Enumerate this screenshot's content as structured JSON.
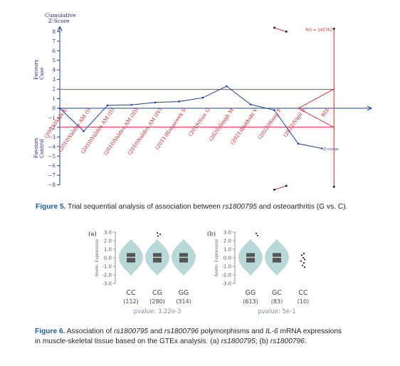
{
  "tsa": {
    "y_axis_label": [
      "Cumulative",
      "Z-Score"
    ],
    "favours_case": [
      "Favours",
      "Case"
    ],
    "favours_control": [
      "Favours",
      "Control"
    ],
    "ris_label": "RIS = 145762",
    "ris_axis_label": "RIS",
    "legend_zcurve": "Z-curve",
    "colors": {
      "zcurve": "#1f3f9c",
      "boundary": "#c8202a",
      "axis": "#1f3f9c",
      "text": "#1f1f7a"
    }
  },
  "chart_data": [
    {
      "type": "line",
      "title": "",
      "xlabel": "",
      "ylabel": "Cumulative Z-Score",
      "ylim": [
        -8,
        8
      ],
      "y_ticks": [
        8,
        7,
        6,
        5,
        4,
        3,
        2,
        1,
        0,
        -1,
        -2,
        -3,
        -4,
        -5,
        -6,
        -7,
        -8
      ],
      "categories": [
        "(2005)Ikala E",
        "(2010)Valdes AM (I)",
        "(2010)Valdes AM (II)",
        "(2010)Valdes AM (III)",
        "(2010)Valdes AM (IV)",
        "(2011)Honsawek S",
        "(2019)Sun G",
        "(2020)Singh M",
        "(2021)Bakhshi V",
        "(2022)Wang F",
        "(2022)Vigil S",
        "RIS"
      ],
      "series": [
        {
          "name": "Z-curve",
          "values": [
            0,
            -2.4,
            0.3,
            0.35,
            0.6,
            0.7,
            1.1,
            2.3,
            0.4,
            -0.2,
            -3.7,
            -4.2
          ]
        }
      ],
      "reference_lines": [
        1.96,
        -1.96
      ],
      "monitoring_boundary_upper": [
        [
          9.0,
          8.4
        ],
        [
          9.5,
          8.0
        ]
      ],
      "monitoring_boundary_lower": [
        [
          9.0,
          -8.5
        ],
        [
          9.5,
          -8.1
        ]
      ],
      "futility_boundary": [
        [
          10.0,
          0
        ],
        [
          11.5,
          2.0
        ],
        [
          11.5,
          -2.0
        ]
      ],
      "ris_position": 11.5
    },
    {
      "type": "violin",
      "panel": "(a)",
      "ylabel": "Norm. Expression",
      "ylim": [
        -3.0,
        3.0
      ],
      "y_ticks": [
        "3.0",
        "2.0",
        "1.0",
        "0.0",
        "-1.0",
        "-2.0",
        "-3.0"
      ],
      "categories": [
        "CC",
        "CG",
        "GG"
      ],
      "counts": [
        "(112)",
        "(280)",
        "(314)"
      ],
      "pvalue": "pvalue: 3.22e-3"
    },
    {
      "type": "violin",
      "panel": "(b)",
      "ylabel": "Norm. Expression",
      "ylim": [
        -3.0,
        3.0
      ],
      "y_ticks": [
        "3.0",
        "2.0",
        "1.0",
        "0.0",
        "-1.0",
        "-2.0",
        "-3.0"
      ],
      "categories": [
        "GG",
        "GC",
        "CC"
      ],
      "counts": [
        "(613)",
        "(83)",
        "(10)"
      ],
      "pvalue": "pvalue: 5e-1"
    }
  ],
  "fig5": {
    "label": "Figure 5.",
    "text_a": "Trial sequential analysis of association between",
    "snp": "rs1800795",
    "text_b": "and osteoarthritis (G vs. C)."
  },
  "fig6": {
    "label": "Figure 6.",
    "t1": "Association of",
    "snp1": "rs1800795",
    "t2": "and",
    "snp2": "rs1800796",
    "t3": "polymorphisms and",
    "gene": "IL-6",
    "t4": "mRNA expressions",
    "t5": "in muscle-skeletal tissue based on the GTEx analysis. (a)",
    "snp3": "rs1800795",
    "t6": "; (b)",
    "snp4": "rs1800796",
    "t7": "."
  }
}
